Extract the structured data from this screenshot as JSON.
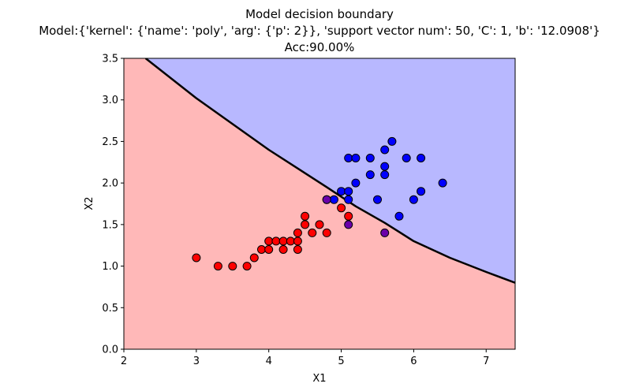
{
  "chart_data": {
    "type": "scatter",
    "title_lines": [
      "Model decision boundary",
      "Model:{'kernel': {'name': 'poly', 'arg': {'p': 2}}, 'support vector num': 50, 'C': 1, 'b': '12.0908'}",
      "Acc:90.00%"
    ],
    "xlabel": "X1",
    "ylabel": "X2",
    "xlim": [
      2,
      7.4
    ],
    "ylim": [
      0,
      3.5
    ],
    "xticks": [
      2,
      3,
      4,
      5,
      6,
      7
    ],
    "xtick_labels": [
      "2",
      "3",
      "4",
      "5",
      "6",
      "7"
    ],
    "yticks": [
      0.0,
      0.5,
      1.0,
      1.5,
      2.0,
      2.5,
      3.0,
      3.5
    ],
    "ytick_labels": [
      "0.0",
      "0.5",
      "1.0",
      "1.5",
      "2.0",
      "2.5",
      "3.0",
      "3.5"
    ],
    "grid": false,
    "legend": "none",
    "regions": {
      "upper_region_color": "#b8b8ff",
      "lower_region_color": "#ffb8b8",
      "boundary_color": "#000000",
      "boundary_line": [
        [
          2.3,
          3.5
        ],
        [
          3.0,
          3.02
        ],
        [
          4.0,
          2.4
        ],
        [
          4.8,
          1.95
        ],
        [
          5.2,
          1.72
        ],
        [
          5.6,
          1.52
        ],
        [
          6.0,
          1.3
        ],
        [
          6.5,
          1.1
        ],
        [
          7.0,
          0.93
        ],
        [
          7.4,
          0.8
        ]
      ]
    },
    "series": [
      {
        "name": "class_red",
        "color": "#ff0000",
        "points": [
          [
            3.0,
            1.1
          ],
          [
            3.3,
            1.0
          ],
          [
            3.5,
            1.0
          ],
          [
            3.7,
            1.0
          ],
          [
            3.8,
            1.1
          ],
          [
            3.9,
            1.2
          ],
          [
            4.0,
            1.2
          ],
          [
            4.0,
            1.3
          ],
          [
            4.1,
            1.3
          ],
          [
            4.2,
            1.2
          ],
          [
            4.2,
            1.3
          ],
          [
            4.3,
            1.3
          ],
          [
            4.4,
            1.2
          ],
          [
            4.4,
            1.3
          ],
          [
            4.4,
            1.4
          ],
          [
            4.5,
            1.5
          ],
          [
            4.5,
            1.6
          ],
          [
            4.6,
            1.4
          ],
          [
            4.7,
            1.5
          ],
          [
            4.8,
            1.4
          ],
          [
            5.0,
            1.7
          ],
          [
            5.1,
            1.6
          ]
        ]
      },
      {
        "name": "class_blue",
        "color": "#0000ff",
        "points": [
          [
            4.8,
            1.8
          ],
          [
            4.9,
            1.8
          ],
          [
            5.0,
            1.9
          ],
          [
            5.1,
            1.9
          ],
          [
            5.1,
            1.8
          ],
          [
            5.1,
            2.3
          ],
          [
            5.2,
            2.3
          ],
          [
            5.2,
            2.0
          ],
          [
            5.4,
            2.3
          ],
          [
            5.4,
            2.1
          ],
          [
            5.5,
            1.8
          ],
          [
            5.6,
            2.4
          ],
          [
            5.6,
            2.2
          ],
          [
            5.6,
            2.1
          ],
          [
            5.7,
            2.5
          ],
          [
            5.8,
            1.6
          ],
          [
            5.9,
            2.3
          ],
          [
            6.0,
            1.8
          ],
          [
            6.1,
            2.3
          ],
          [
            6.1,
            1.9
          ],
          [
            6.4,
            2.0
          ]
        ]
      },
      {
        "name": "class_misclassified",
        "color": "#6a00aa",
        "points": [
          [
            4.8,
            1.8
          ],
          [
            5.1,
            1.5
          ],
          [
            5.6,
            1.4
          ]
        ]
      }
    ]
  }
}
